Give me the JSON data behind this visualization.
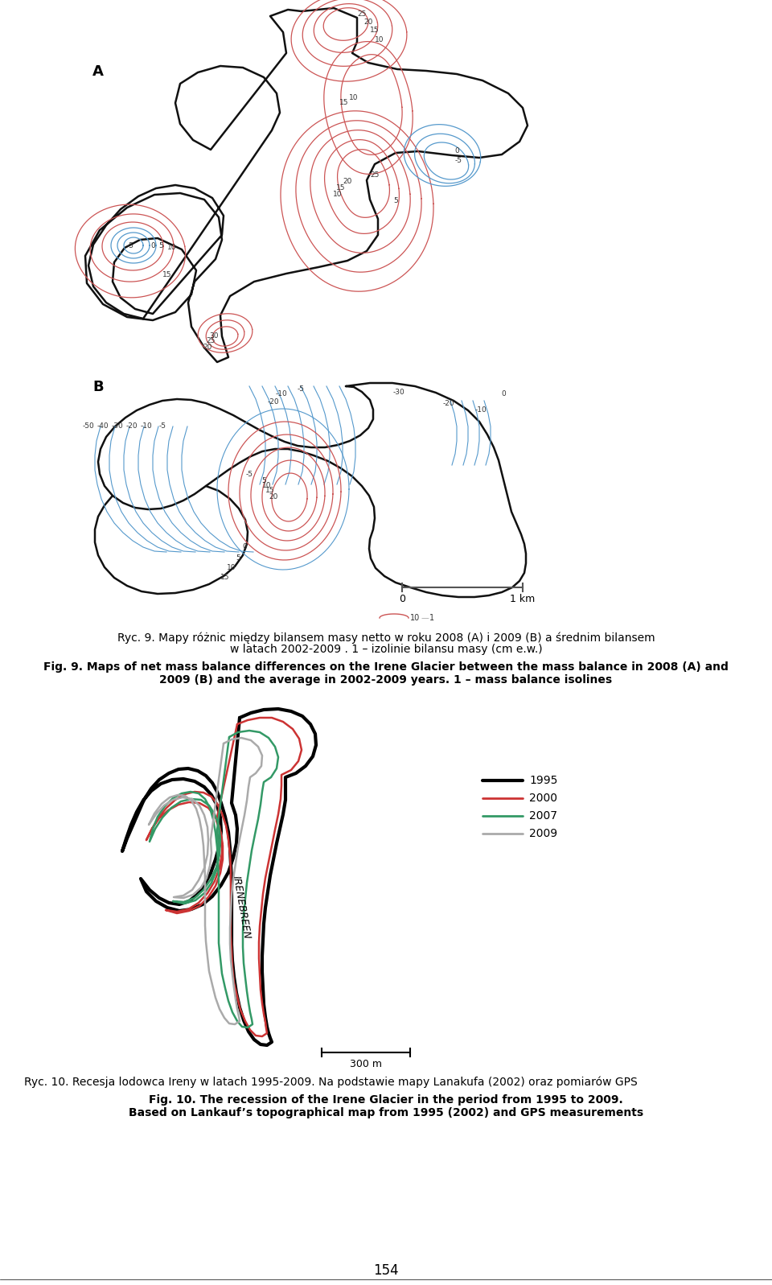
{
  "title_polish_1": "Ryc. 9. Mapy różnic między bilansem masy netto w roku 2008 (A) i 2009 (B) a średnim bilansem",
  "title_polish_2": "w latach 2002-2009 . 1 – izolinie bilansu masy (cm e.w.)",
  "title_english_1": "Fig. 9. Maps of net mass balance differences on the Irene Glacier between the mass balance in 2008 (A) and",
  "title_english_2": "2009 (B) and the average in 2002-2009 years. 1 – mass balance isolines",
  "caption_polish": "Ryc. 10. Recesja lodowca Ireny w latach 1995-2009. Na podstawie mapy Lanakufa (2002) oraz pomiarów GPS",
  "caption_english_1": "Fig. 10. The recession of the Irene Glacier in the period from 1995 to 2009.",
  "caption_english_2": "Based on Lankauf’s topographical map from 1995 (2002) and GPS measurements",
  "page_number": "154",
  "legend_years": [
    "1995",
    "2000",
    "2007",
    "2009"
  ],
  "legend_colors": [
    "#000000",
    "#cc3333",
    "#339966",
    "#aaaaaa"
  ],
  "legend_linewidths": [
    2.5,
    1.5,
    1.5,
    1.5
  ],
  "glacier_label": "IRENEBREEN",
  "scale_bar_bottom": "300 m",
  "scale_bar_map": "1 km",
  "pos_color": "#cc5555",
  "neg_color": "#5599cc",
  "outline_color": "#111111",
  "label_A": "A",
  "label_B": "B"
}
